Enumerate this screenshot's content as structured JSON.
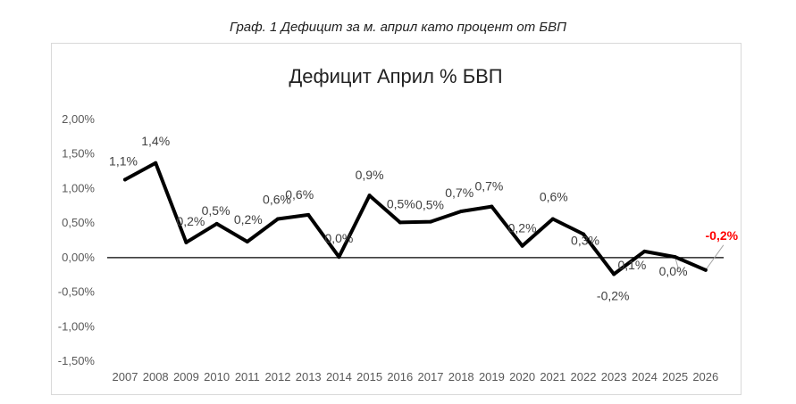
{
  "caption": "Граф. 1 Дефицит за м. април като процент от БВП",
  "chart_data": {
    "type": "line",
    "title": "Дефицит Април % БВП",
    "xlabel": "",
    "ylabel": "",
    "categories": [
      "2007",
      "2008",
      "2009",
      "2010",
      "2011",
      "2012",
      "2013",
      "2014",
      "2015",
      "2016",
      "2017",
      "2018",
      "2019",
      "2020",
      "2021",
      "2022",
      "2023",
      "2024",
      "2025",
      "2026"
    ],
    "values": [
      1.13,
      1.37,
      0.22,
      0.49,
      0.23,
      0.56,
      0.62,
      0.01,
      0.9,
      0.51,
      0.52,
      0.67,
      0.74,
      0.17,
      0.56,
      0.34,
      -0.24,
      0.09,
      0.01,
      -0.18
    ],
    "data_labels": [
      "1,1%",
      "1,4%",
      "0,2%",
      "0,5%",
      "0,2%",
      "0,6%",
      "0,6%",
      "0,0%",
      "0,9%",
      "0,5%",
      "0,5%",
      "0,7%",
      "0,7%",
      "0,2%",
      "0,6%",
      "0,3%",
      "-0,2%",
      "0,1%",
      "0,0%",
      "-0,2%"
    ],
    "highlight_index": 19,
    "highlight_color": "#ff0000",
    "line_color": "#000000",
    "y_ticks": [
      "2,00%",
      "1,50%",
      "1,00%",
      "0,50%",
      "0,00%",
      "-0,50%",
      "-1,00%",
      "-1,50%"
    ],
    "y_tick_values": [
      2.0,
      1.5,
      1.0,
      0.5,
      0.0,
      -0.5,
      -1.0,
      -1.5
    ],
    "ylim": [
      -1.5,
      2.0
    ],
    "grid": false,
    "legend": "none"
  }
}
